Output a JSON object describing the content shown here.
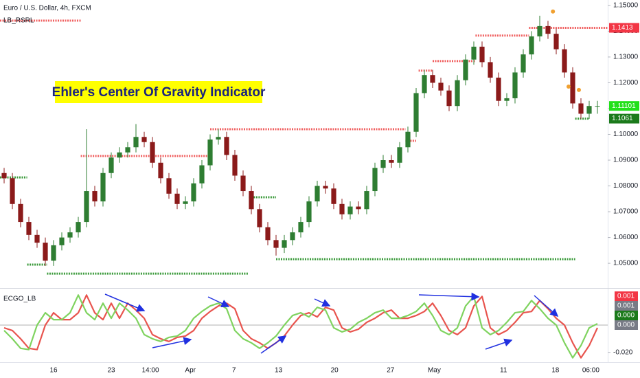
{
  "chart_data": [
    {
      "type": "candlestick",
      "title": "Euro / U.S. Dollar, 4h, FXCM",
      "subtitle": "LB_RSRL",
      "annotation": "Ehler's Center Of Gravity Indicator",
      "up_color": "#2e7d32",
      "down_color": "#8b1a1a",
      "open": [
        1.085,
        1.083,
        1.073,
        1.066,
        1.061,
        1.058,
        1.051,
        1.057,
        1.06,
        1.062,
        1.066,
        1.078,
        1.074,
        1.085,
        1.091,
        1.093,
        1.095,
        1.099,
        1.097,
        1.089,
        1.083,
        1.077,
        1.073,
        1.074,
        1.081,
        1.088,
        1.098,
        1.099,
        1.092,
        1.084,
        1.078,
        1.071,
        1.064,
        1.059,
        1.056,
        1.059,
        1.062,
        1.066,
        1.074,
        1.08,
        1.079,
        1.073,
        1.069,
        1.072,
        1.071,
        1.078,
        1.087,
        1.09,
        1.089,
        1.095,
        1.101,
        1.116,
        1.123,
        1.12,
        1.117,
        1.111,
        1.121,
        1.129,
        1.134,
        1.128,
        1.122,
        1.113,
        1.114,
        1.124,
        1.131,
        1.138,
        1.142,
        1.139,
        1.133,
        1.124,
        1.112,
        1.108,
        1.111
      ],
      "high": [
        1.087,
        1.085,
        1.075,
        1.068,
        1.063,
        1.06,
        1.059,
        1.062,
        1.064,
        1.068,
        1.102,
        1.08,
        1.087,
        1.093,
        1.095,
        1.097,
        1.104,
        1.101,
        1.099,
        1.091,
        1.085,
        1.079,
        1.076,
        1.083,
        1.09,
        1.1,
        1.102,
        1.101,
        1.094,
        1.086,
        1.08,
        1.073,
        1.066,
        1.061,
        1.061,
        1.064,
        1.068,
        1.076,
        1.082,
        1.082,
        1.081,
        1.075,
        1.074,
        1.074,
        1.08,
        1.089,
        1.092,
        1.092,
        1.097,
        1.103,
        1.118,
        1.125,
        1.125,
        1.122,
        1.119,
        1.123,
        1.131,
        1.136,
        1.136,
        1.13,
        1.124,
        1.116,
        1.126,
        1.133,
        1.14,
        1.146,
        1.144,
        1.141,
        1.135,
        1.126,
        1.114,
        1.113,
        1.113
      ],
      "low": [
        1.081,
        1.071,
        1.064,
        1.059,
        1.056,
        1.049,
        1.049,
        1.055,
        1.058,
        1.06,
        1.064,
        1.072,
        1.072,
        1.083,
        1.089,
        1.091,
        1.093,
        1.095,
        1.087,
        1.081,
        1.075,
        1.071,
        1.071,
        1.072,
        1.079,
        1.086,
        1.096,
        1.09,
        1.082,
        1.076,
        1.069,
        1.062,
        1.057,
        1.053,
        1.054,
        1.057,
        1.06,
        1.064,
        1.072,
        1.077,
        1.071,
        1.067,
        1.067,
        1.069,
        1.069,
        1.076,
        1.085,
        1.087,
        1.087,
        1.093,
        1.099,
        1.114,
        1.118,
        1.115,
        1.109,
        1.109,
        1.119,
        1.127,
        1.126,
        1.12,
        1.111,
        1.111,
        1.112,
        1.122,
        1.129,
        1.136,
        1.137,
        1.131,
        1.122,
        1.11,
        1.106,
        1.106,
        1.108
      ],
      "close": [
        1.083,
        1.073,
        1.066,
        1.061,
        1.058,
        1.051,
        1.057,
        1.06,
        1.062,
        1.066,
        1.078,
        1.074,
        1.085,
        1.091,
        1.093,
        1.095,
        1.099,
        1.097,
        1.089,
        1.083,
        1.077,
        1.073,
        1.074,
        1.081,
        1.088,
        1.098,
        1.099,
        1.092,
        1.084,
        1.078,
        1.071,
        1.064,
        1.059,
        1.056,
        1.059,
        1.062,
        1.066,
        1.074,
        1.08,
        1.079,
        1.073,
        1.069,
        1.072,
        1.071,
        1.078,
        1.087,
        1.09,
        1.089,
        1.095,
        1.101,
        1.116,
        1.123,
        1.12,
        1.117,
        1.111,
        1.121,
        1.129,
        1.134,
        1.128,
        1.122,
        1.113,
        1.114,
        1.124,
        1.131,
        1.138,
        1.142,
        1.139,
        1.133,
        1.124,
        1.112,
        1.108,
        1.111,
        1.11101
      ],
      "xlim": [
        -0.5,
        73.25
      ],
      "xticks": [
        {
          "value": 6,
          "label": "16"
        },
        {
          "value": 13,
          "label": "23"
        },
        {
          "value": 17.75,
          "label": "14:00"
        },
        {
          "value": 22.6,
          "label": "Apr"
        },
        {
          "value": 27.9,
          "label": "7"
        },
        {
          "value": 33.3,
          "label": "13"
        },
        {
          "value": 40.1,
          "label": "20"
        },
        {
          "value": 46.9,
          "label": "27"
        },
        {
          "value": 52.2,
          "label": "May"
        },
        {
          "value": 60.6,
          "label": "11"
        },
        {
          "value": 66.9,
          "label": "18"
        },
        {
          "value": 71.2,
          "label": "06:00"
        }
      ],
      "ylim": [
        1.0407,
        1.1521
      ],
      "yticks": [
        {
          "value": 1.05,
          "label": "1.05000"
        },
        {
          "value": 1.06,
          "label": "1.06000"
        },
        {
          "value": 1.07,
          "label": "1.07000"
        },
        {
          "value": 1.08,
          "label": "1.08000"
        },
        {
          "value": 1.09,
          "label": "1.09000"
        },
        {
          "value": 1.1,
          "label": "1.10000"
        },
        {
          "value": 1.11,
          "label": "1.11000"
        },
        {
          "value": 1.12,
          "label": "1.12000"
        },
        {
          "value": 1.13,
          "label": "1.13000"
        },
        {
          "value": 1.14,
          "label": "1.14000"
        },
        {
          "value": 1.15,
          "label": "1.15000"
        }
      ],
      "levels": [
        {
          "from": -0.5,
          "to": 9.3,
          "value": 1.1441,
          "color": "#f06060"
        },
        {
          "from": 9.3,
          "to": 25,
          "value": 1.0916,
          "color": "#f06060"
        },
        {
          "from": 25,
          "to": 48.7,
          "value": 1.102,
          "color": "#f06060"
        },
        {
          "from": 48.7,
          "to": 50,
          "value": 1.0975,
          "color": "#f06060"
        },
        {
          "from": 50.3,
          "to": 52,
          "value": 1.1247,
          "color": "#f06060"
        },
        {
          "from": 52,
          "to": 57.2,
          "value": 1.1284,
          "color": "#f06060"
        },
        {
          "from": 57.2,
          "to": 63.7,
          "value": 1.1383,
          "color": "#f06060"
        },
        {
          "from": 63.7,
          "to": 73.25,
          "value": 1.1413,
          "color": "#f06060"
        },
        {
          "from": -0.5,
          "to": 2.8,
          "value": 1.0833,
          "color": "#3a9a3a"
        },
        {
          "from": 2.8,
          "to": 5.2,
          "value": 1.0495,
          "color": "#3a9a3a"
        },
        {
          "from": 5.2,
          "to": 29.7,
          "value": 1.046,
          "color": "#3a9a3a"
        },
        {
          "from": 29.7,
          "to": 33,
          "value": 1.0756,
          "color": "#3a9a3a"
        },
        {
          "from": 33,
          "to": 69.3,
          "value": 1.0516,
          "color": "#3a9a3a"
        },
        {
          "from": 69.3,
          "to": 71,
          "value": 1.1061,
          "color": "#3a9a3a"
        }
      ],
      "markers": {
        "color": "#f0a030",
        "x": [
          66.6,
          68.5,
          69.75
        ],
        "y": [
          1.1463,
          1.1172,
          1.1159
        ]
      },
      "price_labels": [
        {
          "value": 1.1413,
          "label": "1.1413",
          "color": "#f23645"
        },
        {
          "value": 1.11101,
          "label": "1.11101",
          "color": "#22e01a"
        },
        {
          "value": 1.1061,
          "label": "1.1061",
          "color": "#1b7a1b"
        }
      ]
    },
    {
      "type": "line",
      "title": "ECGO_LB",
      "series": [
        {
          "color": "#7fd35f",
          "values": [
            -0.004,
            -0.01,
            -0.017,
            -0.018,
            0.0,
            0.009,
            0.004,
            0.004,
            0.009,
            0.022,
            0.009,
            0.004,
            0.016,
            0.005,
            0.016,
            0.011,
            0.005,
            -0.007,
            -0.01,
            -0.012,
            -0.009,
            -0.008,
            -0.004,
            0.005,
            0.01,
            0.014,
            0.016,
            0.012,
            -0.004,
            -0.01,
            -0.013,
            -0.017,
            -0.013,
            -0.008,
            0.0,
            0.007,
            0.009,
            0.006,
            0.013,
            0.011,
            -0.002,
            -0.005,
            -0.003,
            0.002,
            0.005,
            0.009,
            0.011,
            0.005,
            0.005,
            0.007,
            0.01,
            0.016,
            0.007,
            -0.004,
            -0.007,
            -0.002,
            0.014,
            0.021,
            -0.002,
            -0.007,
            -0.004,
            0.002,
            0.009,
            0.01,
            0.018,
            0.012,
            0.005,
            0.0,
            -0.013,
            -0.024,
            -0.015,
            -0.002,
            0.001
          ]
        },
        {
          "color": "#e8544e",
          "values": [
            -0.002,
            -0.004,
            -0.01,
            -0.017,
            -0.018,
            0.0,
            0.009,
            0.004,
            0.004,
            0.009,
            0.022,
            0.009,
            0.004,
            0.016,
            0.005,
            0.016,
            0.011,
            0.005,
            -0.007,
            -0.01,
            -0.012,
            -0.009,
            -0.008,
            -0.004,
            0.005,
            0.01,
            0.014,
            0.016,
            0.012,
            -0.004,
            -0.01,
            -0.013,
            -0.017,
            -0.013,
            -0.008,
            0.0,
            0.007,
            0.009,
            0.006,
            0.013,
            0.011,
            -0.002,
            -0.005,
            -0.003,
            0.002,
            0.005,
            0.009,
            0.011,
            0.005,
            0.005,
            0.007,
            0.01,
            0.016,
            0.007,
            -0.004,
            -0.007,
            -0.002,
            0.014,
            0.021,
            -0.002,
            -0.007,
            -0.004,
            0.002,
            0.009,
            0.01,
            0.018,
            0.012,
            0.005,
            0.0,
            -0.013,
            -0.024,
            -0.015,
            -0.002
          ]
        }
      ],
      "ylim": [
        -0.0272,
        0.0267
      ],
      "yticks": [
        {
          "value": -0.02,
          "label": "-0.020"
        }
      ],
      "zero_line": 0,
      "value_labels": [
        {
          "value": 0.001,
          "label": "0.001",
          "color": "#f23645"
        },
        {
          "value": 0.001,
          "label": "0.001",
          "color": "#787b86"
        },
        {
          "value": 0.0,
          "label": "0.000",
          "color": "#1b7a1b"
        },
        {
          "value": 0.0,
          "label": "0.000",
          "color": "#787b86"
        }
      ]
    }
  ]
}
